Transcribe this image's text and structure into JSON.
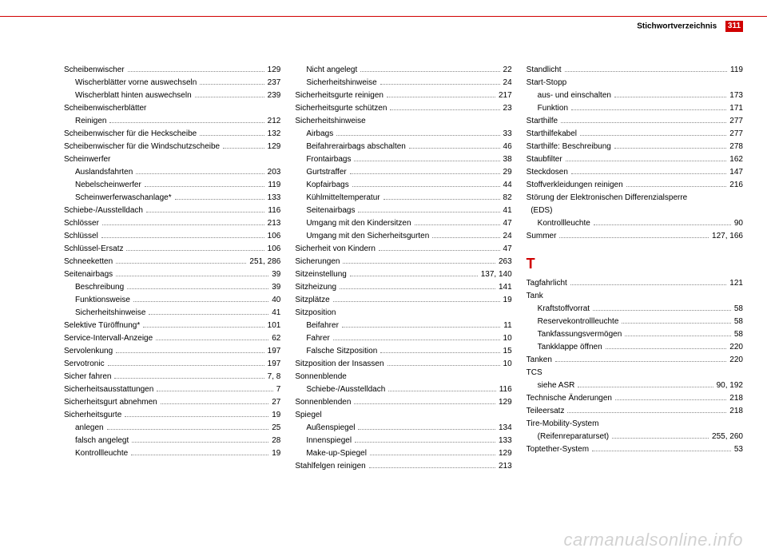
{
  "header": {
    "title": "Stichwortverzeichnis",
    "page": "311"
  },
  "watermark": "carmanualsonline.info",
  "columns": [
    [
      {
        "t": "e",
        "l": "Scheibenwischer",
        "p": "129"
      },
      {
        "t": "s",
        "l": "Wischerblätter vorne auswechseln",
        "p": "237"
      },
      {
        "t": "s",
        "l": "Wischerblatt hinten auswechseln",
        "p": "239"
      },
      {
        "t": "h",
        "l": "Scheibenwischerblätter"
      },
      {
        "t": "s",
        "l": "Reinigen",
        "p": "212"
      },
      {
        "t": "e",
        "l": "Scheibenwischer für die Heckscheibe",
        "p": "132"
      },
      {
        "t": "e",
        "l": "Scheibenwischer für die Windschutzscheibe",
        "p": "129"
      },
      {
        "t": "h",
        "l": "Scheinwerfer"
      },
      {
        "t": "s",
        "l": "Auslandsfahrten",
        "p": "203"
      },
      {
        "t": "s",
        "l": "Nebelscheinwerfer",
        "p": "119"
      },
      {
        "t": "s",
        "l": "Scheinwerferwaschanlage*",
        "p": "133"
      },
      {
        "t": "e",
        "l": "Schiebe-/Ausstelldach",
        "p": "116"
      },
      {
        "t": "e",
        "l": "Schlösser",
        "p": "213"
      },
      {
        "t": "e",
        "l": "Schlüssel",
        "p": "106"
      },
      {
        "t": "e",
        "l": "Schlüssel-Ersatz",
        "p": "106"
      },
      {
        "t": "e",
        "l": "Schneeketten",
        "p": "251, 286"
      },
      {
        "t": "e",
        "l": "Seitenairbags",
        "p": "39"
      },
      {
        "t": "s",
        "l": "Beschreibung",
        "p": "39"
      },
      {
        "t": "s",
        "l": "Funktionsweise",
        "p": "40"
      },
      {
        "t": "s",
        "l": "Sicherheitshinweise",
        "p": "41"
      },
      {
        "t": "e",
        "l": "Selektive Türöffnung*",
        "p": "101"
      },
      {
        "t": "e",
        "l": "Service-Intervall-Anzeige",
        "p": "62"
      },
      {
        "t": "e",
        "l": "Servolenkung",
        "p": "197"
      },
      {
        "t": "e",
        "l": "Servotronic",
        "p": "197"
      },
      {
        "t": "e",
        "l": "Sicher fahren",
        "p": "7, 8"
      },
      {
        "t": "e",
        "l": "Sicherheitsausstattungen",
        "p": "7"
      },
      {
        "t": "e",
        "l": "Sicherheitsgurt abnehmen",
        "p": "27"
      },
      {
        "t": "e",
        "l": "Sicherheitsgurte",
        "p": "19"
      },
      {
        "t": "s",
        "l": "anlegen",
        "p": "25"
      },
      {
        "t": "s",
        "l": "falsch angelegt",
        "p": "28"
      },
      {
        "t": "s",
        "l": "Kontrollleuchte",
        "p": "19"
      }
    ],
    [
      {
        "t": "s",
        "l": "Nicht angelegt",
        "p": "22"
      },
      {
        "t": "s",
        "l": "Sicherheitshinweise",
        "p": "24"
      },
      {
        "t": "e",
        "l": "Sicherheitsgurte reinigen",
        "p": "217"
      },
      {
        "t": "e",
        "l": "Sicherheitsgurte schützen",
        "p": "23"
      },
      {
        "t": "h",
        "l": "Sicherheitshinweise"
      },
      {
        "t": "s",
        "l": "Airbags",
        "p": "33"
      },
      {
        "t": "s",
        "l": "Beifahrerairbags abschalten",
        "p": "46"
      },
      {
        "t": "s",
        "l": "Frontairbags",
        "p": "38"
      },
      {
        "t": "s",
        "l": "Gurtstraffer",
        "p": "29"
      },
      {
        "t": "s",
        "l": "Kopfairbags",
        "p": "44"
      },
      {
        "t": "s",
        "l": "Kühlmitteltemperatur",
        "p": "82"
      },
      {
        "t": "s",
        "l": "Seitenairbags",
        "p": "41"
      },
      {
        "t": "s",
        "l": "Umgang mit den Kindersitzen",
        "p": "47"
      },
      {
        "t": "s",
        "l": "Umgang mit den Sicherheitsgurten",
        "p": "24"
      },
      {
        "t": "e",
        "l": "Sicherheit von Kindern",
        "p": "47"
      },
      {
        "t": "e",
        "l": "Sicherungen",
        "p": "263"
      },
      {
        "t": "e",
        "l": "Sitzeinstellung",
        "p": "137, 140"
      },
      {
        "t": "e",
        "l": "Sitzheizung",
        "p": "141"
      },
      {
        "t": "e",
        "l": "Sitzplätze",
        "p": "19"
      },
      {
        "t": "h",
        "l": "Sitzposition"
      },
      {
        "t": "s",
        "l": "Beifahrer",
        "p": "11"
      },
      {
        "t": "s",
        "l": "Fahrer",
        "p": "10"
      },
      {
        "t": "s",
        "l": "Falsche Sitzposition",
        "p": "15"
      },
      {
        "t": "e",
        "l": "Sitzposition der Insassen",
        "p": "10"
      },
      {
        "t": "h",
        "l": "Sonnenblende"
      },
      {
        "t": "s",
        "l": "Schiebe-/Ausstelldach",
        "p": "116"
      },
      {
        "t": "e",
        "l": "Sonnenblenden",
        "p": "129"
      },
      {
        "t": "h",
        "l": "Spiegel"
      },
      {
        "t": "s",
        "l": "Außenspiegel",
        "p": "134"
      },
      {
        "t": "s",
        "l": "Innenspiegel",
        "p": "133"
      },
      {
        "t": "s",
        "l": "Make-up-Spiegel",
        "p": "129"
      },
      {
        "t": "e",
        "l": "Stahlfelgen reinigen",
        "p": "213"
      }
    ],
    [
      {
        "t": "e",
        "l": "Standlicht",
        "p": "119"
      },
      {
        "t": "h",
        "l": "Start-Stopp"
      },
      {
        "t": "s",
        "l": "aus- und einschalten",
        "p": "173"
      },
      {
        "t": "s",
        "l": "Funktion",
        "p": "171"
      },
      {
        "t": "e",
        "l": "Starthilfe",
        "p": "277"
      },
      {
        "t": "e",
        "l": "Starthilfekabel",
        "p": "277"
      },
      {
        "t": "e",
        "l": "Starthilfe: Beschreibung",
        "p": "278"
      },
      {
        "t": "e",
        "l": "Staubfilter",
        "p": "162"
      },
      {
        "t": "e",
        "l": "Steckdosen",
        "p": "147"
      },
      {
        "t": "e",
        "l": "Stoffverkleidungen reinigen",
        "p": "216"
      },
      {
        "t": "h",
        "l": "Störung der Elektronischen Differenzialsperre"
      },
      {
        "t": "h",
        "l": "  (EDS)"
      },
      {
        "t": "s",
        "l": "Kontrollleuchte",
        "p": "90"
      },
      {
        "t": "e",
        "l": "Summer",
        "p": "127, 166"
      },
      {
        "t": "letter",
        "l": "T"
      },
      {
        "t": "e",
        "l": "Tagfahrlicht",
        "p": "121"
      },
      {
        "t": "h",
        "l": "Tank"
      },
      {
        "t": "s",
        "l": "Kraftstoffvorrat",
        "p": "58"
      },
      {
        "t": "s",
        "l": "Reservekontrollleuchte",
        "p": "58"
      },
      {
        "t": "s",
        "l": "Tankfassungsvermögen",
        "p": "58"
      },
      {
        "t": "s",
        "l": "Tankklappe öffnen",
        "p": "220"
      },
      {
        "t": "e",
        "l": "Tanken",
        "p": "220"
      },
      {
        "t": "h",
        "l": "TCS"
      },
      {
        "t": "s",
        "l": "siehe ASR",
        "p": "90, 192"
      },
      {
        "t": "e",
        "l": "Technische Änderungen",
        "p": "218"
      },
      {
        "t": "e",
        "l": "Teileersatz",
        "p": "218"
      },
      {
        "t": "h",
        "l": "Tire-Mobility-System"
      },
      {
        "t": "s",
        "l": "(Reifenreparaturset)",
        "p": "255, 260"
      },
      {
        "t": "e",
        "l": "Toptether-System",
        "p": "53"
      }
    ]
  ]
}
